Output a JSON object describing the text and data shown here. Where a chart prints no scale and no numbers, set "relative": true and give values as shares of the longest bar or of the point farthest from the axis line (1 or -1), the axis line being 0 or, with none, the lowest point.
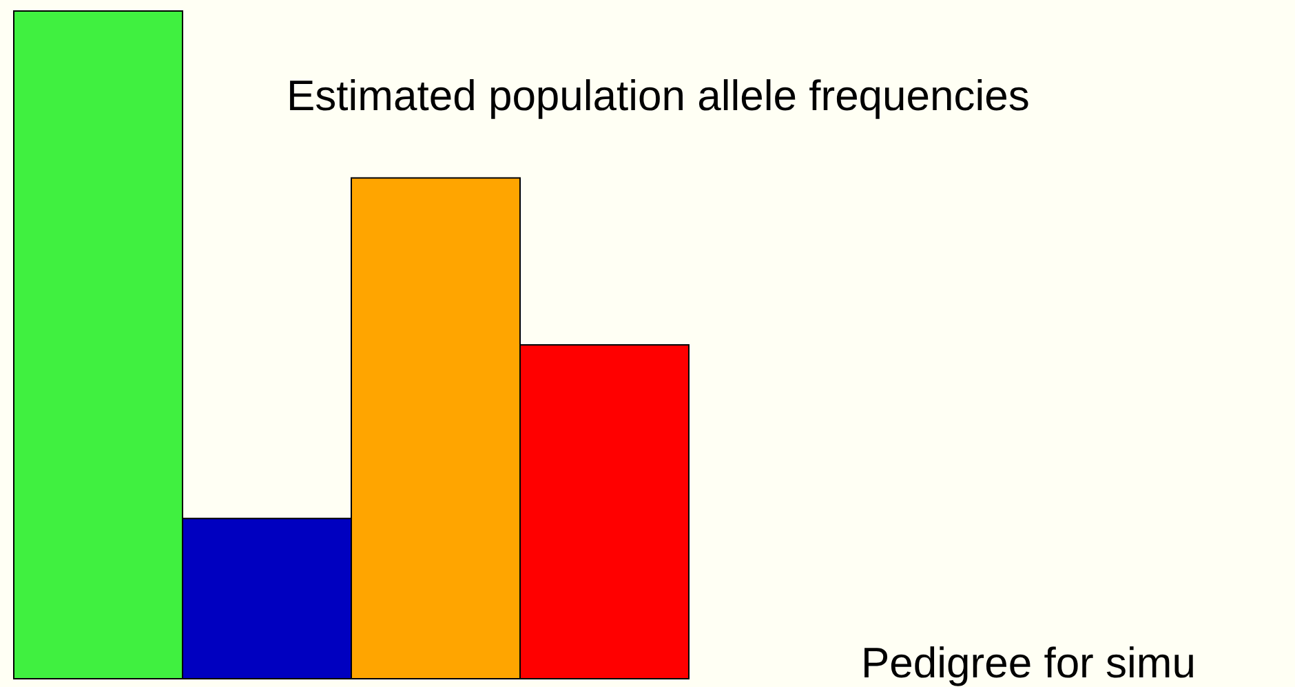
{
  "chart_data": {
    "type": "bar",
    "title": "Estimated population allele frequencies",
    "annotations": [
      "Pedigree for simu"
    ],
    "categories": [
      null,
      null,
      null,
      null
    ],
    "values": [
      1,
      0.24,
      0.75,
      0.5
    ],
    "colors": [
      "#40f040",
      "#0000c0",
      "#ffa500",
      "#ff0000"
    ],
    "relative": true
  }
}
